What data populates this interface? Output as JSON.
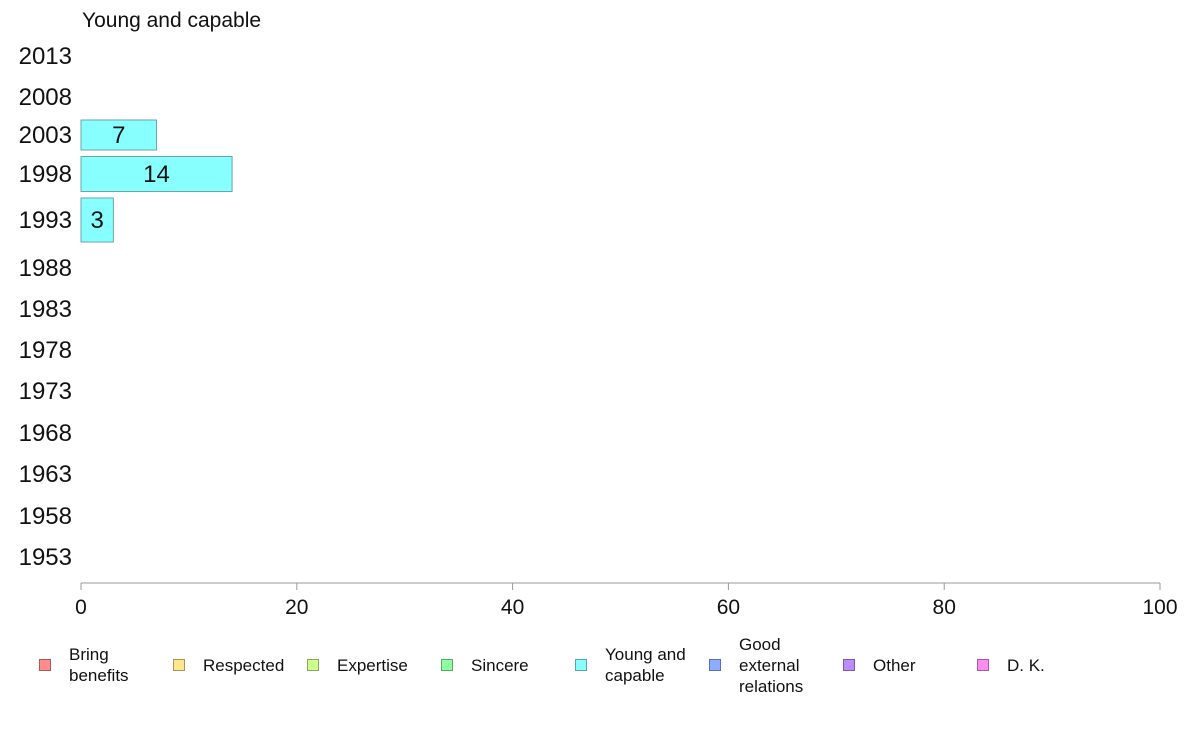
{
  "chart_data": {
    "type": "bar",
    "orientation": "horizontal",
    "title": "Young and capable",
    "categories": [
      "2013",
      "2008",
      "2003",
      "1998",
      "1993",
      "1988",
      "1983",
      "1978",
      "1973",
      "1968",
      "1963",
      "1958",
      "1953"
    ],
    "series": [
      {
        "name": "Young and capable",
        "values": [
          null,
          null,
          7,
          14,
          3,
          null,
          null,
          null,
          null,
          null,
          null,
          null,
          null
        ],
        "labels": [
          "",
          "",
          "7",
          "14",
          "3",
          "",
          "",
          "",
          "",
          "",
          "",
          "",
          ""
        ]
      }
    ],
    "xlim": [
      0,
      100
    ],
    "xticks": [
      "0",
      "20",
      "40",
      "60",
      "80",
      "100"
    ],
    "grid": false,
    "bar_color": "#88ffff",
    "legend_placement": "bottom"
  },
  "legend": {
    "items": [
      {
        "label": "Bring\nbenefits",
        "color": "#ff8c8c"
      },
      {
        "label": "Respected",
        "color": "#ffe68c"
      },
      {
        "label": "Expertise",
        "color": "#ccff8c"
      },
      {
        "label": "Sincere",
        "color": "#8cff9e"
      },
      {
        "label": "Young and\ncapable",
        "color": "#88ffff"
      },
      {
        "label": "Good\nexternal\nrelations",
        "color": "#8cacff"
      },
      {
        "label": "Other",
        "color": "#bb8cff"
      },
      {
        "label": "D. K.",
        "color": "#ff8cf2"
      }
    ]
  }
}
